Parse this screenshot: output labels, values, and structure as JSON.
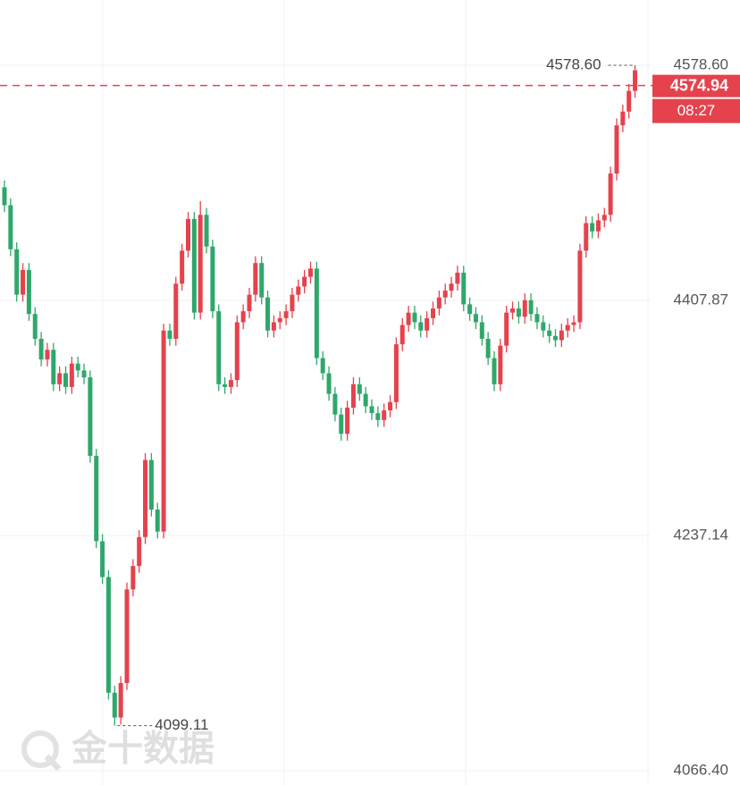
{
  "chart_data": {
    "type": "candlestick",
    "up_color": "#e5424d",
    "down_color": "#2ea86a",
    "ylim": [
      4056,
      4626
    ],
    "yticks": [
      {
        "value": 4066.4,
        "label": "4066.40"
      },
      4237.14,
      4407.87,
      {
        "value": 4578.6,
        "label": "4578.60"
      }
    ],
    "grid": true,
    "open": [
      4490,
      4477,
      4445,
      4412,
      4430,
      4398,
      4380,
      4365,
      4372,
      4347,
      4355,
      4345,
      4362,
      4357,
      4352,
      4295,
      4233,
      4207,
      4123,
      4105,
      4130,
      4198,
      4215,
      4236,
      4292,
      4256,
      4240,
      4386,
      4380,
      4420,
      4444,
      4467,
      4399,
      4470,
      4447,
      4400,
      4347,
      4345,
      4350,
      4392,
      4400,
      4412,
      4435,
      4410,
      4386,
      4392,
      4395,
      4400,
      4412,
      4418,
      4425,
      4431,
      4366,
      4355,
      4340,
      4325,
      4311,
      4330,
      4347,
      4340,
      4331,
      4326,
      4321,
      4328,
      4334,
      4376,
      4390,
      4399,
      4392,
      4386,
      4395,
      4402,
      4410,
      4415,
      4420,
      4428,
      4405,
      4398,
      4392,
      4380,
      4366,
      4347,
      4375,
      4399,
      4402,
      4396,
      4408,
      4398,
      4392,
      4386,
      4382,
      4379,
      4386,
      4390,
      4392,
      4444,
      4464,
      4458,
      4466,
      4470,
      4500,
      4535,
      4545,
      4560
    ],
    "high": [
      4495,
      4482,
      4450,
      4435,
      4435,
      4403,
      4385,
      4377,
      4377,
      4360,
      4360,
      4367,
      4367,
      4362,
      4357,
      4300,
      4238,
      4212,
      4128,
      4135,
      4203,
      4220,
      4241,
      4297,
      4297,
      4261,
      4391,
      4391,
      4425,
      4449,
      4472,
      4472,
      4480,
      4475,
      4452,
      4405,
      4352,
      4355,
      4397,
      4405,
      4417,
      4440,
      4440,
      4415,
      4397,
      4400,
      4405,
      4417,
      4423,
      4430,
      4436,
      4436,
      4371,
      4360,
      4345,
      4330,
      4335,
      4352,
      4352,
      4345,
      4336,
      4331,
      4333,
      4339,
      4381,
      4395,
      4404,
      4404,
      4397,
      4400,
      4407,
      4415,
      4420,
      4425,
      4433,
      4433,
      4410,
      4403,
      4397,
      4385,
      4371,
      4380,
      4404,
      4407,
      4407,
      4413,
      4413,
      4403,
      4397,
      4391,
      4387,
      4391,
      4395,
      4397,
      4449,
      4469,
      4469,
      4471,
      4475,
      4505,
      4540,
      4550,
      4565,
      4578.6
    ],
    "low": [
      4472,
      4440,
      4407,
      4407,
      4393,
      4375,
      4360,
      4360,
      4342,
      4342,
      4340,
      4340,
      4352,
      4347,
      4290,
      4228,
      4202,
      4118,
      4099.11,
      4100,
      4125,
      4193,
      4210,
      4231,
      4251,
      4235,
      4235,
      4375,
      4375,
      4415,
      4439,
      4394,
      4394,
      4442,
      4395,
      4342,
      4340,
      4340,
      4345,
      4387,
      4395,
      4407,
      4405,
      4381,
      4381,
      4387,
      4390,
      4395,
      4407,
      4413,
      4420,
      4361,
      4350,
      4335,
      4320,
      4306,
      4306,
      4325,
      4335,
      4326,
      4321,
      4316,
      4316,
      4323,
      4329,
      4371,
      4385,
      4387,
      4381,
      4381,
      4390,
      4397,
      4405,
      4410,
      4415,
      4400,
      4393,
      4387,
      4375,
      4361,
      4342,
      4342,
      4370,
      4394,
      4391,
      4391,
      4393,
      4387,
      4381,
      4377,
      4374,
      4374,
      4381,
      4385,
      4387,
      4439,
      4453,
      4453,
      4461,
      4465,
      4495,
      4530,
      4540,
      4555
    ],
    "close": [
      4477,
      4445,
      4412,
      4430,
      4398,
      4380,
      4365,
      4372,
      4347,
      4355,
      4345,
      4362,
      4357,
      4352,
      4295,
      4233,
      4207,
      4123,
      4105,
      4130,
      4198,
      4215,
      4236,
      4292,
      4256,
      4240,
      4386,
      4380,
      4420,
      4444,
      4467,
      4399,
      4470,
      4447,
      4400,
      4347,
      4345,
      4350,
      4392,
      4400,
      4412,
      4435,
      4410,
      4386,
      4392,
      4395,
      4400,
      4412,
      4418,
      4425,
      4431,
      4366,
      4355,
      4340,
      4325,
      4311,
      4330,
      4347,
      4340,
      4331,
      4326,
      4321,
      4328,
      4334,
      4376,
      4390,
      4399,
      4392,
      4386,
      4395,
      4402,
      4410,
      4415,
      4420,
      4428,
      4405,
      4398,
      4392,
      4380,
      4366,
      4347,
      4375,
      4399,
      4402,
      4396,
      4408,
      4398,
      4392,
      4386,
      4382,
      4379,
      4386,
      4390,
      4392,
      4444,
      4464,
      4458,
      4466,
      4470,
      4500,
      4535,
      4545,
      4560,
      4574.94
    ],
    "last_price": 4574.94,
    "countdown": "08:27",
    "high_marker": {
      "value": 4578.6,
      "label": "4578.60"
    },
    "low_marker": 4099.11,
    "watermark": "金十数据"
  }
}
